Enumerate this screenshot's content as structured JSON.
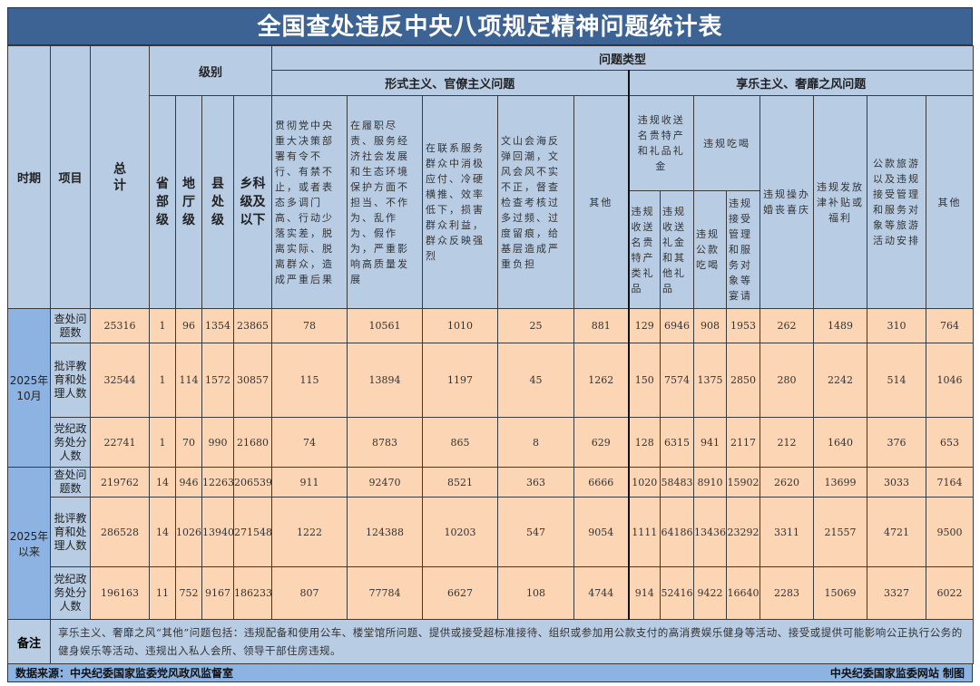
{
  "title": "全国查处违反中央八项规定精神问题统计表",
  "headers": {
    "period": "时期",
    "item": "项目",
    "total": "总计",
    "level": "级别",
    "levels": [
      "省部级",
      "地厅级",
      "县处级",
      "乡科级及以下"
    ],
    "problem_type": "问题类型",
    "formalism_group": "形式主义、官僚主义问题",
    "formalism_cols": [
      "贯彻党中央重大决策部署有令不行、有禁不止，或者表态多调门高、行动少落实差，脱离实际、脱离群众，造成严重后果",
      "在履职尽责、服务经济社会发展和生态环境保护方面不担当、不作为、乱作为、假作为，严重影响高质量发展",
      "在联系服务群众中消极应付、冷硬横推、效率低下，损害群众利益，群众反映强烈",
      "文山会海反弹回潮，文风会风不实不正，督查检查考核过多过频、过度留痕，给基层造成严重负担",
      "其他"
    ],
    "hedonism_group": "享乐主义、奢靡之风问题",
    "gift_group": "违规收送名贵特产和礼品礼金",
    "gift_cols": [
      "违规收送名贵特产类礼品",
      "违规收送礼金和其他礼品"
    ],
    "eat_group": "违规吃喝",
    "eat_cols": [
      "违规公款吃喝",
      "违规接受管理和服务对象等宴请"
    ],
    "hedonism_cols": [
      "违规操办婚丧喜庆",
      "违规发放津补贴或福利",
      "公款旅游以及违规接受管理和服务对象等旅游活动安排",
      "其他"
    ]
  },
  "groups": [
    {
      "period": "2025年10月",
      "rows": [
        {
          "item": "查处问题数",
          "values": [
            "25316",
            "1",
            "96",
            "1354",
            "23865",
            "78",
            "10561",
            "1010",
            "25",
            "881",
            "129",
            "6946",
            "908",
            "1953",
            "262",
            "1489",
            "310",
            "764"
          ]
        },
        {
          "item": "批评教育和处理人数",
          "values": [
            "32544",
            "1",
            "114",
            "1572",
            "30857",
            "115",
            "13894",
            "1197",
            "45",
            "1262",
            "150",
            "7574",
            "1375",
            "2850",
            "280",
            "2242",
            "514",
            "1046"
          ]
        },
        {
          "item": "党纪政务处分人数",
          "values": [
            "22741",
            "1",
            "70",
            "990",
            "21680",
            "74",
            "8783",
            "865",
            "8",
            "629",
            "128",
            "6315",
            "941",
            "2117",
            "212",
            "1640",
            "376",
            "653"
          ]
        }
      ]
    },
    {
      "period": "2025年以来",
      "rows": [
        {
          "item": "查处问题数",
          "values": [
            "219762",
            "14",
            "946",
            "12263",
            "206539",
            "911",
            "92470",
            "8521",
            "363",
            "6666",
            "1020",
            "58483",
            "8910",
            "15902",
            "2620",
            "13699",
            "3033",
            "7164"
          ]
        },
        {
          "item": "批评教育和处理人数",
          "values": [
            "286528",
            "14",
            "1026",
            "13940",
            "271548",
            "1222",
            "124388",
            "10203",
            "547",
            "9054",
            "1111",
            "64186",
            "13436",
            "23292",
            "3311",
            "21557",
            "4721",
            "9500"
          ]
        },
        {
          "item": "党纪政务处分人数",
          "values": [
            "196163",
            "11",
            "752",
            "9167",
            "186233",
            "807",
            "77784",
            "6627",
            "108",
            "4744",
            "914",
            "52416",
            "9422",
            "16640",
            "2283",
            "15069",
            "3327",
            "6022"
          ]
        }
      ]
    }
  ],
  "notes": {
    "label": "备注",
    "text": "享乐主义、奢靡之风“其他”问题包括：违规配备和使用公车、楼堂馆所问题、提供或接受超标准接待、组织或参加用公款支付的高消费娱乐健身等活动、接受或提供可能影响公正执行公务的健身娱乐等活动、违规出入私人会所、领导干部住房违规。"
  },
  "footer": {
    "source": "数据来源：中央纪委国家监委党风政风监督室",
    "credit": "中央纪委国家监委网站 制图"
  },
  "colors": {
    "title_bg": "#3d6394",
    "header_bg": "#b8cce4",
    "period_bg": "#8db3e2",
    "data_bg": "#fcd5b4"
  }
}
